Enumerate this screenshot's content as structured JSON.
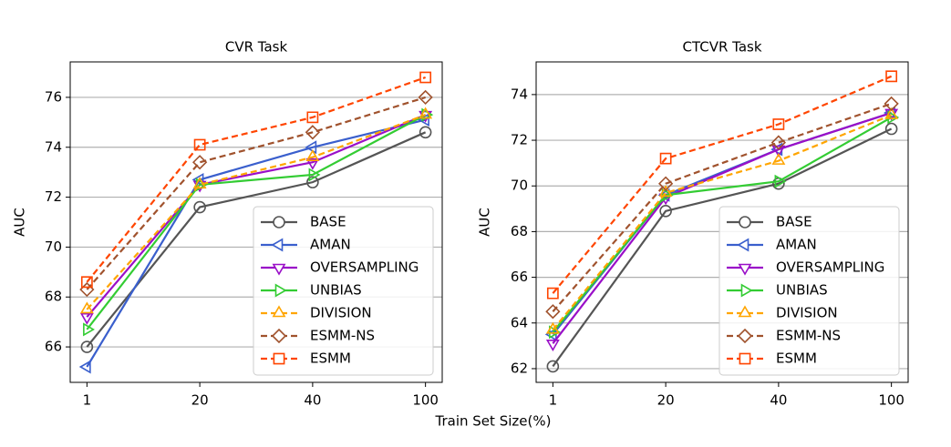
{
  "xlabel": "Train Set Size(%)",
  "chart_data": [
    {
      "type": "line",
      "title": "CVR Task",
      "ylabel": "AUC",
      "categories": [
        "1",
        "20",
        "40",
        "100"
      ],
      "ylim": [
        64.58,
        77.42
      ],
      "yticks": [
        66,
        68,
        70,
        72,
        74,
        76
      ],
      "grid": true,
      "legend": "lower right",
      "series": [
        {
          "name": "BASE",
          "color": "#555555",
          "marker": "circle",
          "dashed": false,
          "values": [
            66.0,
            71.6,
            72.6,
            74.6
          ]
        },
        {
          "name": "AMAN",
          "color": "#3a5fcd",
          "marker": "triangle-left",
          "dashed": false,
          "values": [
            65.2,
            72.7,
            74.0,
            75.1
          ]
        },
        {
          "name": "OVERSAMPLING",
          "color": "#9a0fc8",
          "marker": "triangle-down",
          "dashed": false,
          "values": [
            67.2,
            72.5,
            73.4,
            75.3
          ]
        },
        {
          "name": "UNBIAS",
          "color": "#33cc33",
          "marker": "triangle-right",
          "dashed": false,
          "values": [
            66.7,
            72.5,
            72.9,
            75.3
          ]
        },
        {
          "name": "DIVISION",
          "color": "#ffa500",
          "marker": "triangle-up",
          "dashed": true,
          "values": [
            67.5,
            72.5,
            73.6,
            75.3
          ]
        },
        {
          "name": "ESMM-NS",
          "color": "#a0522d",
          "marker": "diamond",
          "dashed": true,
          "values": [
            68.3,
            73.4,
            74.6,
            76.0
          ]
        },
        {
          "name": "ESMM",
          "color": "#ff4500",
          "marker": "square",
          "dashed": true,
          "values": [
            68.6,
            74.1,
            75.2,
            76.8
          ]
        }
      ]
    },
    {
      "type": "line",
      "title": "CTCVR Task",
      "ylabel": "AUC",
      "categories": [
        "1",
        "20",
        "40",
        "100"
      ],
      "ylim": [
        61.4,
        75.43
      ],
      "yticks": [
        62,
        64,
        66,
        68,
        70,
        72,
        74
      ],
      "grid": true,
      "legend": "lower right",
      "series": [
        {
          "name": "BASE",
          "color": "#555555",
          "marker": "circle",
          "dashed": false,
          "values": [
            62.1,
            68.9,
            70.1,
            72.5
          ]
        },
        {
          "name": "AMAN",
          "color": "#3a5fcd",
          "marker": "triangle-left",
          "dashed": false,
          "values": [
            63.5,
            69.6,
            71.6,
            73.2
          ]
        },
        {
          "name": "OVERSAMPLING",
          "color": "#9a0fc8",
          "marker": "triangle-down",
          "dashed": false,
          "values": [
            63.1,
            69.5,
            71.6,
            73.2
          ]
        },
        {
          "name": "UNBIAS",
          "color": "#33cc33",
          "marker": "triangle-right",
          "dashed": false,
          "values": [
            63.6,
            69.6,
            70.2,
            73.0
          ]
        },
        {
          "name": "DIVISION",
          "color": "#ffa500",
          "marker": "triangle-up",
          "dashed": true,
          "values": [
            63.7,
            69.7,
            71.1,
            73.1
          ]
        },
        {
          "name": "ESMM-NS",
          "color": "#a0522d",
          "marker": "diamond",
          "dashed": true,
          "values": [
            64.5,
            70.1,
            71.9,
            73.6
          ]
        },
        {
          "name": "ESMM",
          "color": "#ff4500",
          "marker": "square",
          "dashed": true,
          "values": [
            65.3,
            71.2,
            72.7,
            74.8
          ]
        }
      ]
    }
  ]
}
